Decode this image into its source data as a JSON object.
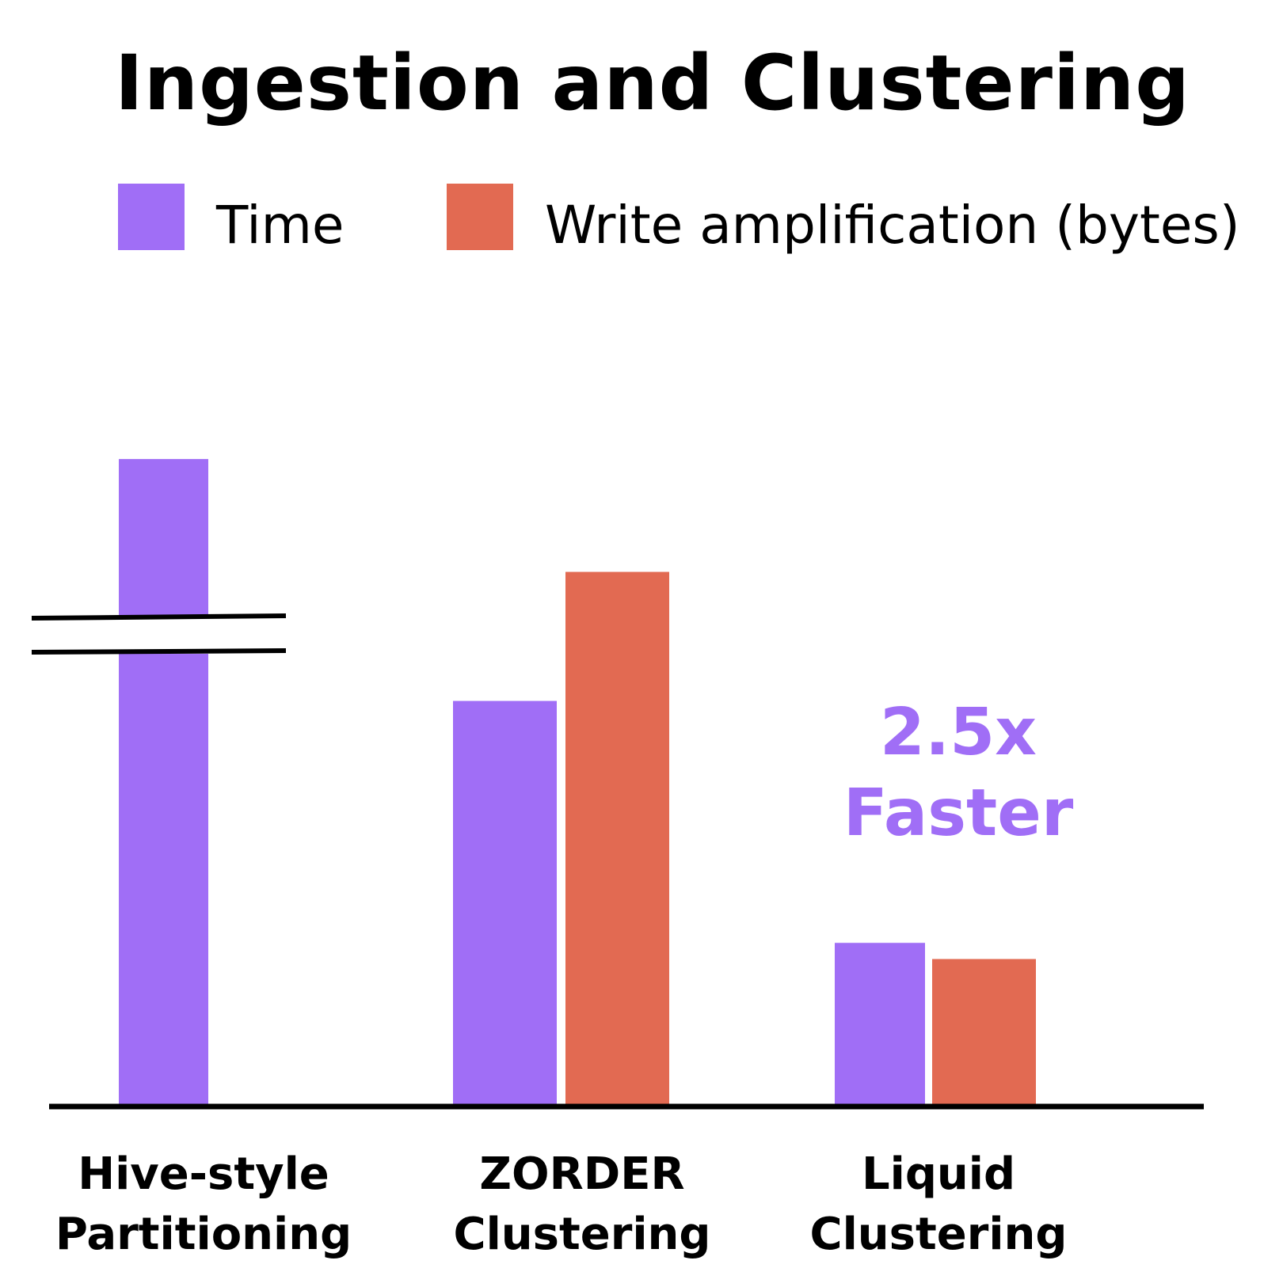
{
  "chart_data": {
    "type": "bar",
    "title": "Ingestion and Clustering",
    "xlabel": "",
    "ylabel": "",
    "categories": [
      "Hive-style Partitioning",
      "ZORDER Clustering",
      "Liquid Clustering"
    ],
    "category_lines": [
      [
        "Hive-style",
        "Partitioning"
      ],
      [
        "ZORDER",
        "Clustering"
      ],
      [
        "Liquid",
        "Clustering"
      ]
    ],
    "series": [
      {
        "name": "Time",
        "color": "#a06ef6",
        "values": [
          4.0,
          2.5,
          1.0
        ]
      },
      {
        "name": "Write amplification (bytes)",
        "color": "#e26a52",
        "values": [
          null,
          3.3,
          0.9
        ]
      }
    ],
    "ylim": [
      0,
      4.5
    ],
    "axis_break": {
      "category": "Hive-style Partitioning",
      "at": 2.9
    },
    "grid": false,
    "legend": "top",
    "annotation": {
      "lines": [
        "2.5x",
        "Faster"
      ],
      "color": "#a06ef6"
    }
  }
}
